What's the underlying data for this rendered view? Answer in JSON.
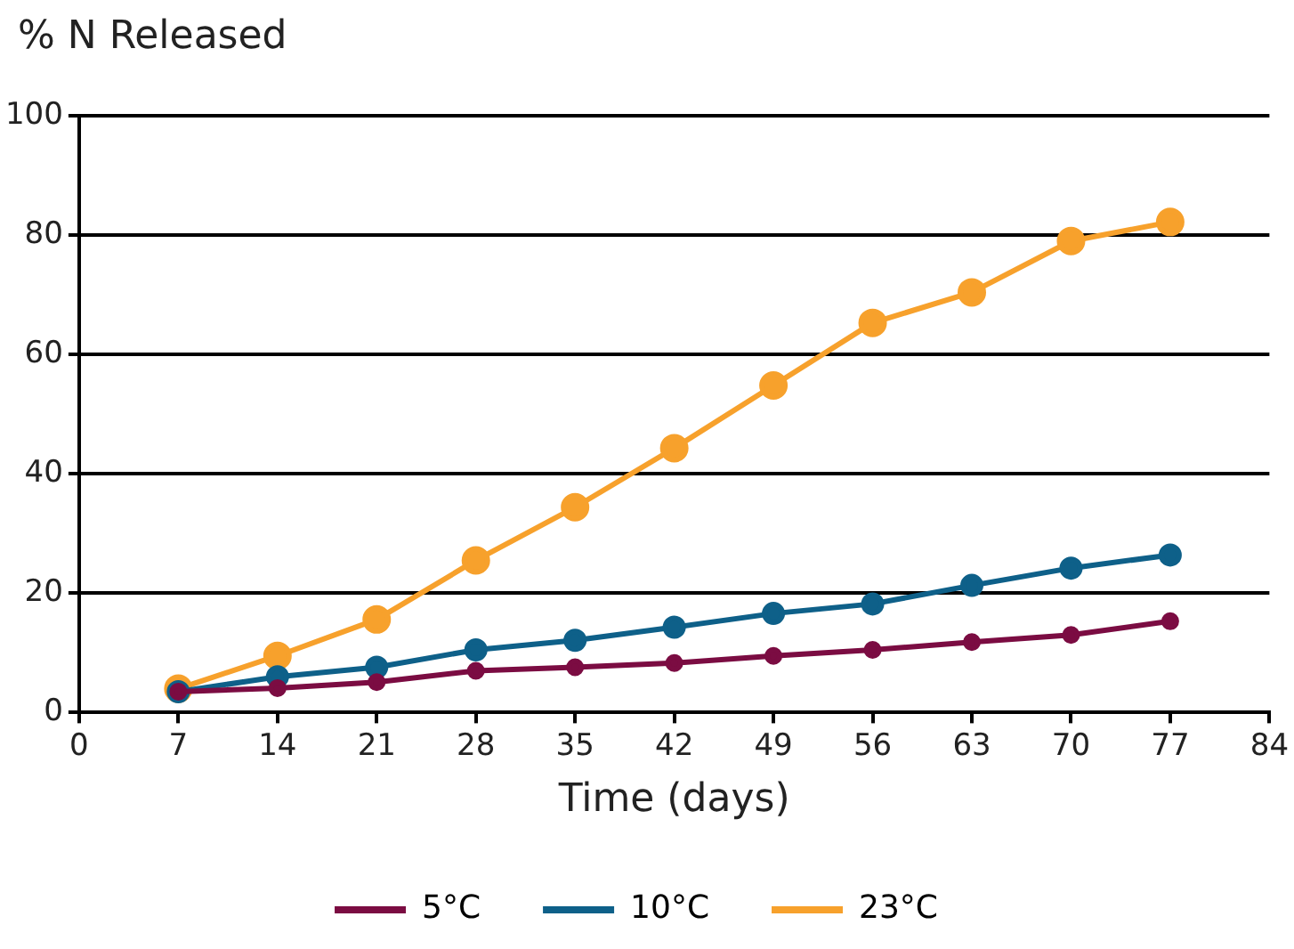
{
  "chart_data": {
    "type": "line",
    "ylabel": "% N Released",
    "xlabel": "Time (days)",
    "x": [
      7,
      14,
      21,
      28,
      35,
      42,
      49,
      56,
      63,
      70,
      77
    ],
    "xlim": [
      0,
      84
    ],
    "xticks": [
      0,
      7,
      14,
      21,
      28,
      35,
      42,
      49,
      56,
      63,
      70,
      77,
      84
    ],
    "ylim": [
      0,
      100
    ],
    "yticks": [
      0,
      20,
      40,
      60,
      80,
      100
    ],
    "grid": "y",
    "legend": "bottom",
    "marker": "circle",
    "line_style": "solid",
    "series": [
      {
        "name": "5°C",
        "color": "#7b0c42",
        "values": [
          3.5,
          4.1,
          5.1,
          7,
          7.6,
          8.3,
          9.5,
          10.5,
          11.8,
          13,
          15.3
        ]
      },
      {
        "name": "10°C",
        "color": "#0e6089",
        "values": [
          3.5,
          6,
          7.6,
          10.5,
          12.1,
          14.3,
          16.6,
          18.2,
          21.3,
          24.2,
          26.4
        ]
      },
      {
        "name": "23°C",
        "color": "#f7a12c",
        "values": [
          4,
          9.5,
          15.6,
          25.5,
          34.4,
          44.3,
          54.8,
          65.3,
          70.4,
          79,
          82.2
        ]
      }
    ]
  }
}
